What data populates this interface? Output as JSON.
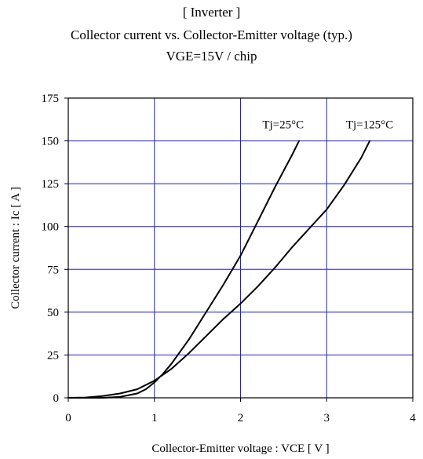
{
  "titles": {
    "line1": "[ Inverter ]",
    "line2": "Collector current vs. Collector-Emitter voltage (typ.)",
    "line3": "VGE=15V / chip"
  },
  "chart_data": {
    "type": "line",
    "title": "Collector current vs. Collector-Emitter voltage (typ.)",
    "subtitle": "VGE=15V / chip",
    "xlabel": "Collector-Emitter voltage : VCE [ V ]",
    "ylabel": "Collector current : Ic [ A ]",
    "xlim": [
      0,
      4
    ],
    "ylim": [
      0,
      175
    ],
    "xticks": [
      0,
      1,
      2,
      3,
      4
    ],
    "yticks": [
      0,
      25,
      50,
      75,
      100,
      125,
      150,
      175
    ],
    "grid": true,
    "colors": {
      "grid": "#1f1fd6",
      "line": "#000000",
      "axis": "#000000"
    },
    "series": [
      {
        "name": "Tj=25°C",
        "x": [
          0,
          0.4,
          0.6,
          0.8,
          0.9,
          1.0,
          1.1,
          1.2,
          1.4,
          1.6,
          1.8,
          2.0,
          2.2,
          2.4,
          2.6,
          2.68
        ],
        "y": [
          0,
          0,
          0.5,
          2.5,
          5,
          9,
          14,
          20,
          34,
          50,
          66,
          83,
          103,
          123,
          142,
          150
        ]
      },
      {
        "name": "Tj=125°C",
        "x": [
          0,
          0.2,
          0.4,
          0.6,
          0.8,
          1.0,
          1.2,
          1.4,
          1.6,
          1.8,
          2.0,
          2.2,
          2.4,
          2.6,
          2.8,
          3.0,
          3.2,
          3.4,
          3.5
        ],
        "y": [
          0,
          0.2,
          1,
          2.5,
          5,
          10,
          17,
          26,
          36,
          46,
          55,
          65,
          76,
          88,
          99,
          110,
          124,
          140,
          150
        ]
      }
    ]
  }
}
